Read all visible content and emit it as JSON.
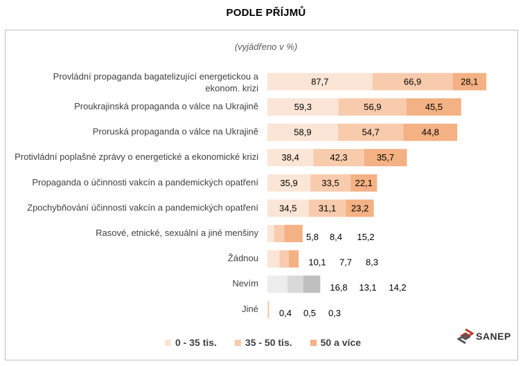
{
  "title": "PODLE PŘÍJMŮ",
  "subtitle": "(vyjádřeno v %)",
  "logo_text": "SANEP",
  "colors": {
    "s1": "#fbe5d6",
    "s2": "#f8cbad",
    "s3": "#f4b183",
    "g1": "#ededed",
    "g2": "#d9d9d9",
    "g3": "#bfbfbf"
  },
  "chart_data": {
    "type": "bar",
    "orientation": "horizontal",
    "stacked": true,
    "categories": [
      "Provládní propaganda bagatelizující energetickou a ekonom. krizi",
      "Proukrajinská propaganda o válce na Ukrajině",
      "Proruská propaganda o válce na Ukrajině",
      "Protivládní poplašné zprávy o energetické a ekonomické krizi",
      "Propaganda o účinnosti vakcín a pandemických opatření",
      "Zpochybňování účinnosti vakcín a pandemických opatření",
      "Rasové, etnické, sexuální a jiné menšiny",
      "Žádnou",
      "Nevím",
      "Jiné"
    ],
    "series": [
      {
        "name": "0 - 35 tis.",
        "values": [
          87.7,
          59.3,
          58.9,
          38.4,
          35.9,
          34.5,
          5.8,
          10.1,
          16.8,
          0.4
        ]
      },
      {
        "name": "35 - 50 tis.",
        "values": [
          66.9,
          56.9,
          54.7,
          42.3,
          33.5,
          31.1,
          8.4,
          7.7,
          13.1,
          0.5
        ]
      },
      {
        "name": "50 a více",
        "values": [
          28.1,
          45.5,
          44.8,
          35.7,
          22.1,
          23.2,
          15.2,
          8.3,
          14.2,
          0.3
        ]
      }
    ],
    "value_labels": [
      [
        "87,7",
        "66,9",
        "28,1"
      ],
      [
        "59,3",
        "56,9",
        "45,5"
      ],
      [
        "58,9",
        "54,7",
        "44,8"
      ],
      [
        "38,4",
        "42,3",
        "35,7"
      ],
      [
        "35,9",
        "33,5",
        "22,1"
      ],
      [
        "34,5",
        "31,1",
        "23,2"
      ],
      [
        "5,8",
        "8,4",
        "15,2"
      ],
      [
        "10,1",
        "7,7",
        "8,3"
      ],
      [
        "16,8",
        "13,1",
        "14,2"
      ],
      [
        "0,4",
        "0,5",
        "0,3"
      ]
    ],
    "legend": [
      "0 - 35 tis.",
      "35 - 50 tis.",
      "50 a více"
    ],
    "legend_position": "bottom",
    "grid": false
  }
}
